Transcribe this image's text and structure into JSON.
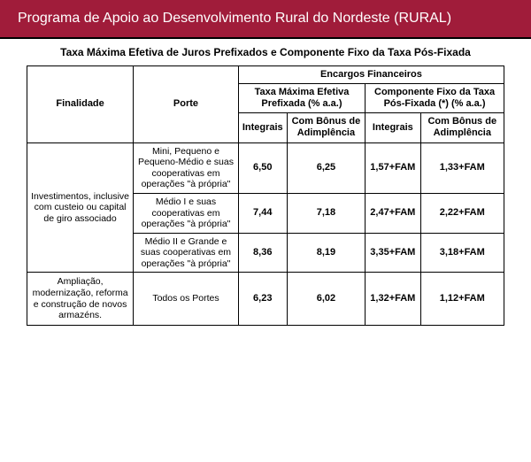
{
  "header": {
    "title": "Programa de Apoio ao Desenvolvimento Rural do Nordeste (RURAL)",
    "bg_color": "#a01c3a"
  },
  "table": {
    "title": "Taxa Máxima Efetiva de Juros Prefixados e Componente Fixo da Taxa Pós-Fixada",
    "headers": {
      "finalidade": "Finalidade",
      "porte": "Porte",
      "encargos": "Encargos Financeiros",
      "prefixada": "Taxa Máxima Efetiva Prefixada (% a.a.)",
      "posfixada": "Componente Fixo da Taxa Pós-Fixada (*) (% a.a.)",
      "integrais": "Integrais",
      "bonus": "Com Bônus de Adimplência"
    },
    "rows": [
      {
        "finalidade": "Investimentos, inclusive com custeio ou capital de giro associado",
        "finalidade_rowspan": 3,
        "porte": "Mini, Pequeno e Pequeno-Médio e suas cooperativas em operações \"à própria\"",
        "pre_int": "6,50",
        "pre_bon": "6,25",
        "pos_int": "1,57+FAM",
        "pos_bon": "1,33+FAM"
      },
      {
        "porte": "Médio I e suas cooperativas em operações \"à própria\"",
        "pre_int": "7,44",
        "pre_bon": "7,18",
        "pos_int": "2,47+FAM",
        "pos_bon": "2,22+FAM"
      },
      {
        "porte": "Médio II e Grande e suas cooperativas em operações \"à própria\"",
        "pre_int": "8,36",
        "pre_bon": "8,19",
        "pos_int": "3,35+FAM",
        "pos_bon": "3,18+FAM"
      },
      {
        "finalidade": "Ampliação, modernização, reforma e construção de novos armazéns.",
        "finalidade_rowspan": 1,
        "porte": "Todos os Portes",
        "pre_int": "6,23",
        "pre_bon": "6,02",
        "pos_int": "1,32+FAM",
        "pos_bon": "1,12+FAM"
      }
    ]
  }
}
